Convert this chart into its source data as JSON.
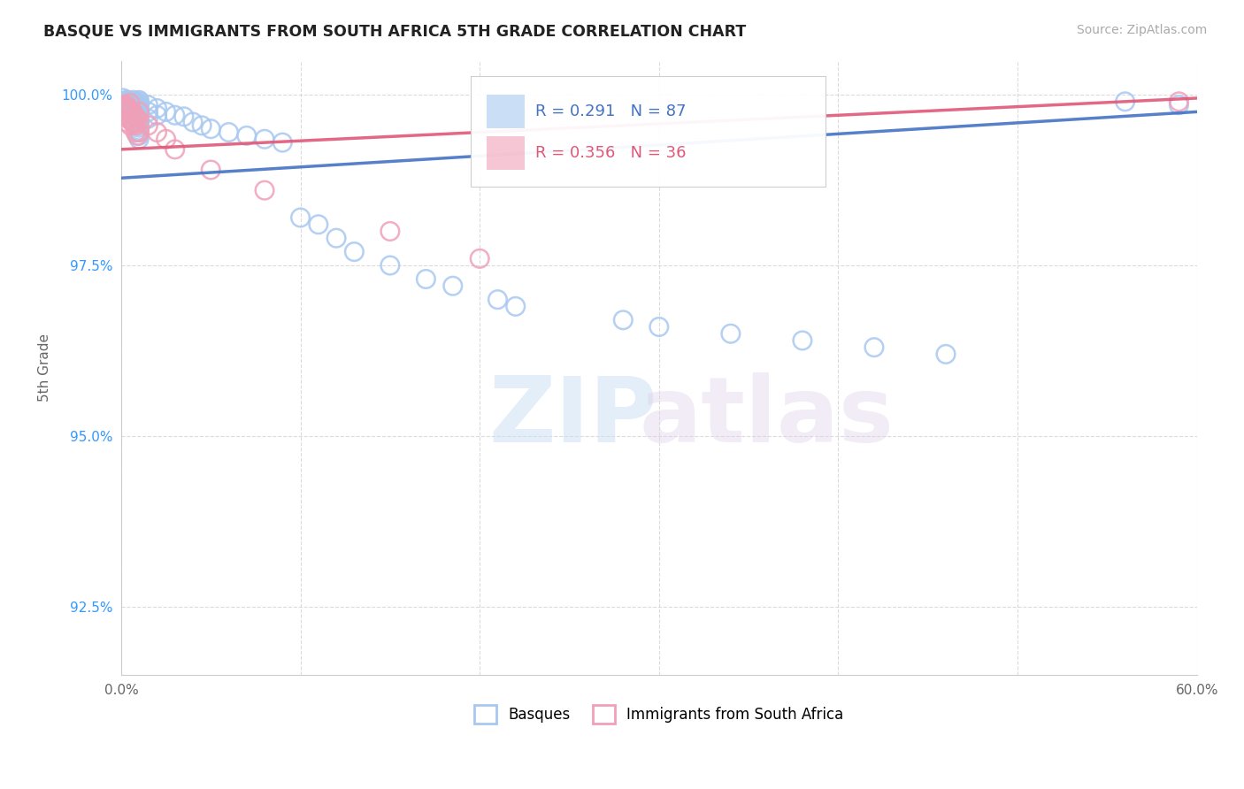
{
  "title": "BASQUE VS IMMIGRANTS FROM SOUTH AFRICA 5TH GRADE CORRELATION CHART",
  "source_text": "Source: ZipAtlas.com",
  "xlabel": "",
  "ylabel": "5th Grade",
  "xlim": [
    0.0,
    0.6
  ],
  "ylim": [
    0.915,
    1.005
  ],
  "xticks": [
    0.0,
    0.1,
    0.2,
    0.3,
    0.4,
    0.5,
    0.6
  ],
  "xticklabels": [
    "0.0%",
    "",
    "",
    "",
    "",
    "",
    "60.0%"
  ],
  "yticks": [
    0.925,
    0.95,
    0.975,
    1.0
  ],
  "yticklabels": [
    "92.5%",
    "95.0%",
    "97.5%",
    "100.0%"
  ],
  "blue_color": "#a8c8f0",
  "pink_color": "#f0a0b8",
  "blue_line_color": "#4472c4",
  "pink_line_color": "#e05878",
  "R_blue": 0.291,
  "N_blue": 87,
  "R_pink": 0.356,
  "N_pink": 36,
  "legend_labels": [
    "Basques",
    "Immigrants from South Africa"
  ],
  "watermark_zip": "ZIP",
  "watermark_atlas": "atlas",
  "background_color": "#ffffff",
  "grid_color": "#cccccc",
  "blue_scatter_x": [
    0.001,
    0.001,
    0.001,
    0.001,
    0.002,
    0.002,
    0.002,
    0.002,
    0.002,
    0.003,
    0.003,
    0.003,
    0.003,
    0.004,
    0.004,
    0.004,
    0.005,
    0.005,
    0.005,
    0.005,
    0.005,
    0.006,
    0.006,
    0.006,
    0.007,
    0.007,
    0.007,
    0.007,
    0.007,
    0.008,
    0.008,
    0.008,
    0.008,
    0.009,
    0.009,
    0.009,
    0.009,
    0.01,
    0.01,
    0.01,
    0.01,
    0.01,
    0.01,
    0.01,
    0.01,
    0.01,
    0.01,
    0.01,
    0.01,
    0.01,
    0.01,
    0.01,
    0.01,
    0.01,
    0.01,
    0.015,
    0.015,
    0.015,
    0.02,
    0.02,
    0.025,
    0.03,
    0.035,
    0.04,
    0.045,
    0.05,
    0.06,
    0.07,
    0.08,
    0.09,
    0.1,
    0.11,
    0.12,
    0.13,
    0.15,
    0.17,
    0.185,
    0.21,
    0.22,
    0.28,
    0.3,
    0.34,
    0.38,
    0.42,
    0.46,
    0.56,
    0.59
  ],
  "blue_scatter_y": [
    0.999,
    0.9995,
    0.9985,
    0.998,
    0.999,
    0.9988,
    0.9985,
    0.9982,
    0.9978,
    0.9992,
    0.9988,
    0.9985,
    0.997,
    0.9992,
    0.9985,
    0.9975,
    0.999,
    0.9988,
    0.9985,
    0.998,
    0.9975,
    0.9988,
    0.998,
    0.997,
    0.9992,
    0.9988,
    0.9985,
    0.9978,
    0.996,
    0.9988,
    0.998,
    0.9972,
    0.9965,
    0.9985,
    0.9978,
    0.997,
    0.996,
    0.9992,
    0.999,
    0.9988,
    0.9985,
    0.9982,
    0.9978,
    0.9975,
    0.9972,
    0.9968,
    0.9965,
    0.9962,
    0.9958,
    0.9955,
    0.9952,
    0.9948,
    0.9945,
    0.994,
    0.9935,
    0.9985,
    0.9975,
    0.9965,
    0.998,
    0.997,
    0.9975,
    0.997,
    0.9968,
    0.996,
    0.9955,
    0.995,
    0.9945,
    0.994,
    0.9935,
    0.993,
    0.982,
    0.981,
    0.979,
    0.977,
    0.975,
    0.973,
    0.972,
    0.97,
    0.969,
    0.967,
    0.966,
    0.965,
    0.964,
    0.963,
    0.962,
    0.999,
    0.9985
  ],
  "pink_scatter_x": [
    0.001,
    0.001,
    0.001,
    0.002,
    0.002,
    0.002,
    0.003,
    0.003,
    0.003,
    0.004,
    0.004,
    0.005,
    0.005,
    0.005,
    0.005,
    0.006,
    0.006,
    0.007,
    0.007,
    0.008,
    0.008,
    0.008,
    0.009,
    0.009,
    0.01,
    0.01,
    0.01,
    0.015,
    0.02,
    0.025,
    0.03,
    0.05,
    0.08,
    0.15,
    0.2,
    0.59
  ],
  "pink_scatter_y": [
    0.9985,
    0.998,
    0.9975,
    0.9982,
    0.9978,
    0.997,
    0.9985,
    0.9975,
    0.996,
    0.998,
    0.9965,
    0.9988,
    0.9975,
    0.9965,
    0.9955,
    0.9975,
    0.996,
    0.9972,
    0.9958,
    0.9968,
    0.9955,
    0.9945,
    0.9965,
    0.994,
    0.9975,
    0.996,
    0.9945,
    0.9955,
    0.9945,
    0.9935,
    0.992,
    0.989,
    0.986,
    0.98,
    0.976,
    0.999
  ],
  "trend_blue_x0": 0.0,
  "trend_blue_x1": 0.6,
  "trend_blue_y0": 0.9878,
  "trend_blue_y1": 0.9975,
  "trend_pink_x0": 0.0,
  "trend_pink_x1": 0.6,
  "trend_pink_y0": 0.992,
  "trend_pink_y1": 0.9995
}
